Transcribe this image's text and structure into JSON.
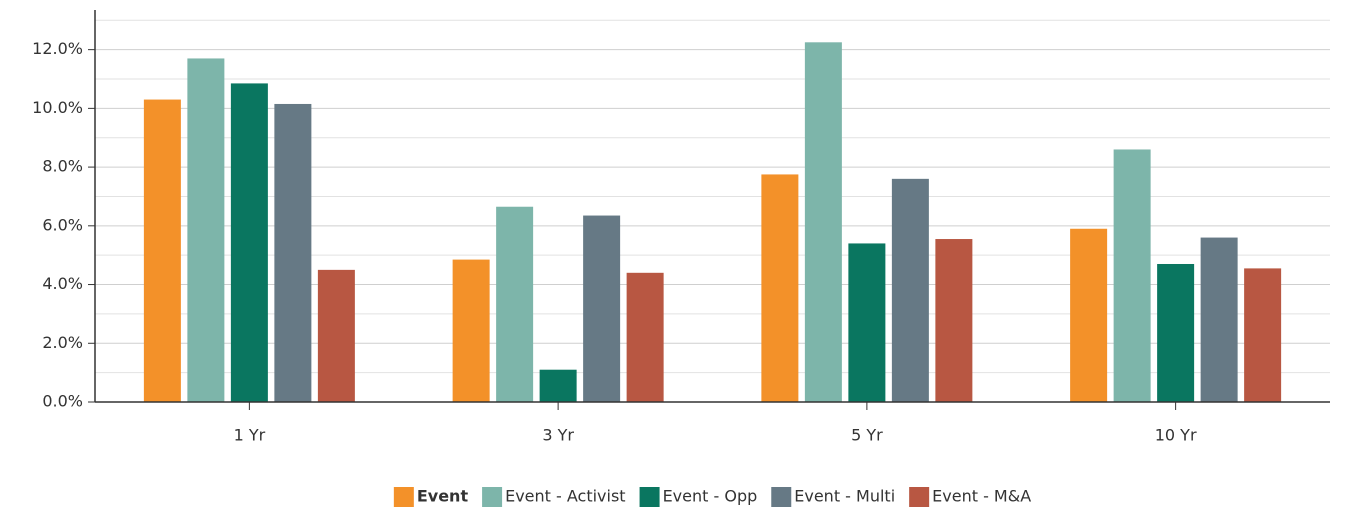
{
  "chart_data": {
    "type": "bar",
    "categories": [
      "1 Yr",
      "3 Yr",
      "5 Yr",
      "10 Yr"
    ],
    "series": [
      {
        "name": "Event",
        "color": "#f39129",
        "bold": true,
        "values": [
          10.3,
          4.85,
          7.75,
          5.9
        ]
      },
      {
        "name": "Event - Activist",
        "color": "#7db5aa",
        "values": [
          11.7,
          6.65,
          12.25,
          8.6
        ]
      },
      {
        "name": "Event - Opp",
        "color": "#0a7660",
        "values": [
          10.85,
          1.1,
          5.4,
          4.7
        ]
      },
      {
        "name": "Event - Multi",
        "color": "#667985",
        "values": [
          10.15,
          6.35,
          7.6,
          5.6
        ]
      },
      {
        "name": "Event - M&A",
        "color": "#b85742",
        "values": [
          4.5,
          4.4,
          5.55,
          4.55
        ]
      }
    ],
    "ylim": [
      0,
      13.35
    ],
    "yticks": [
      {
        "value": 0,
        "label": "0.0%"
      },
      {
        "value": 2,
        "label": "2.0%"
      },
      {
        "value": 4,
        "label": "4.0%"
      },
      {
        "value": 6,
        "label": "6.0%"
      },
      {
        "value": 8,
        "label": "8.0%"
      },
      {
        "value": 10,
        "label": "10.0%"
      },
      {
        "value": 12,
        "label": "12.0%"
      }
    ],
    "minor_yticks": [
      1,
      3,
      5,
      7,
      9,
      11,
      13
    ],
    "grid": true,
    "legend": "bottom"
  }
}
